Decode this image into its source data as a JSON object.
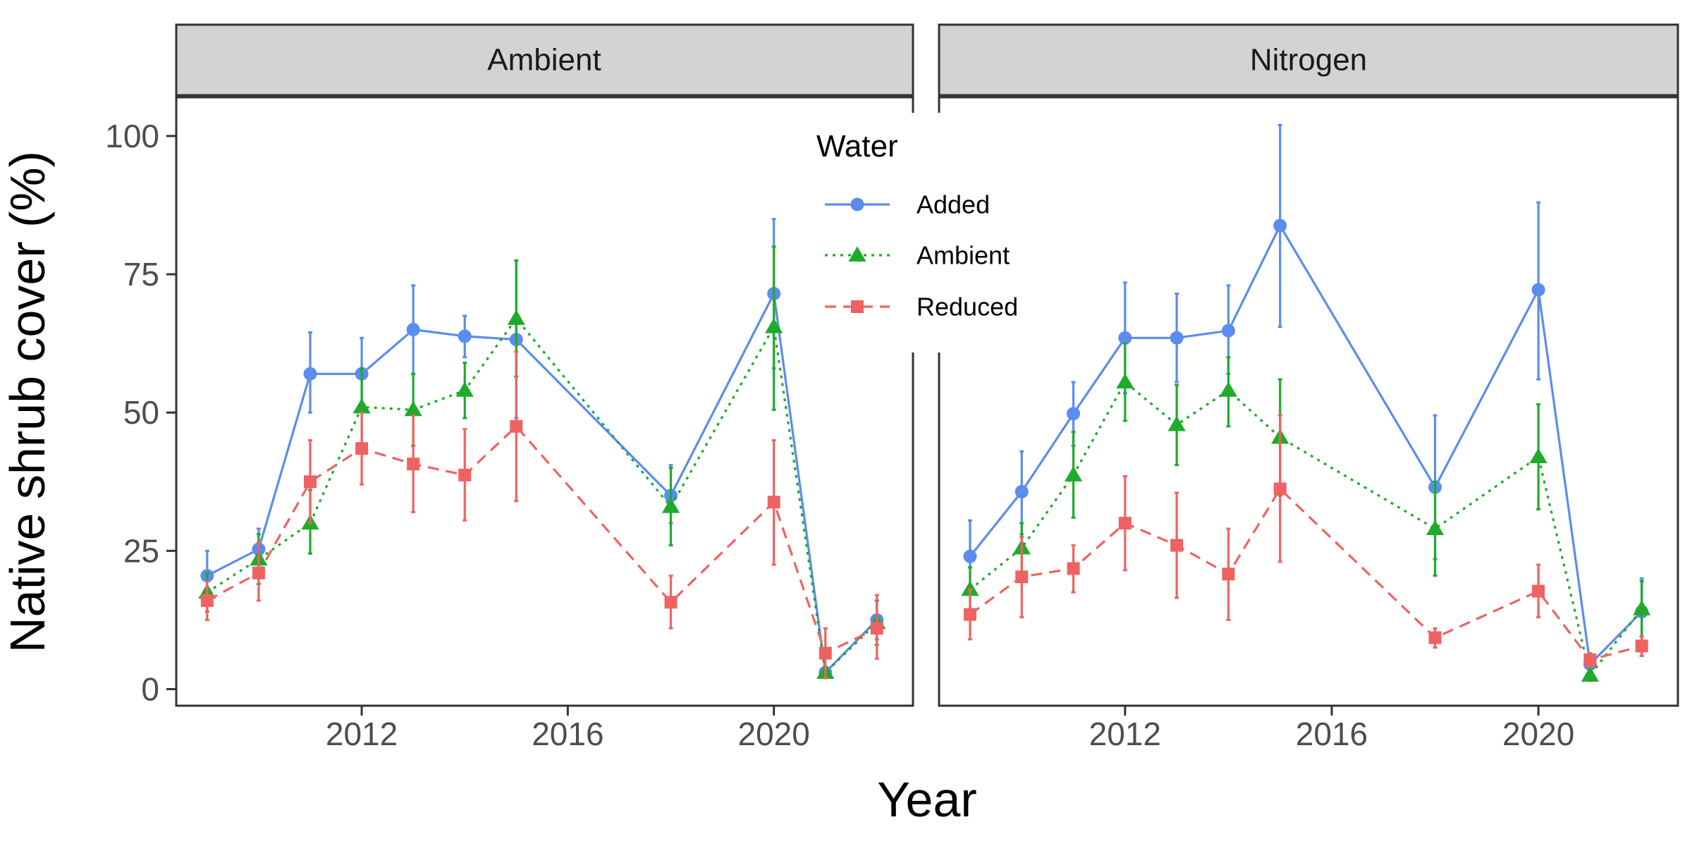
{
  "chart_data": {
    "type": "line",
    "facet_labels": [
      "Ambient",
      "Nitrogen"
    ],
    "xlabel": "Year",
    "ylabel": "Native shrub cover (%)",
    "x_ticks": [
      2012,
      2016,
      2020
    ],
    "y_ticks": [
      0,
      25,
      50,
      75,
      100
    ],
    "xlim": [
      2008.4,
      2022.7
    ],
    "ylim": [
      -3,
      107
    ],
    "legend": {
      "title": "Water",
      "position": "top-center",
      "entries": [
        "Added",
        "Ambient",
        "Reduced"
      ]
    },
    "colors": {
      "Added": "#5b8cf0",
      "Ambient": "#1fab2a",
      "Reduced": "#ef6262"
    },
    "markers": {
      "Added": "circle",
      "Ambient": "triangle",
      "Reduced": "square"
    },
    "dashes": {
      "Added": "solid",
      "Ambient": "dotted",
      "Reduced": "dashed"
    },
    "grid": false,
    "panels": [
      {
        "label": "Ambient",
        "series": [
          {
            "name": "Added",
            "points": [
              {
                "x": 2009,
                "y": 20.5,
                "lo": 16.5,
                "hi": 25
              },
              {
                "x": 2010,
                "y": 25.3,
                "lo": 21.5,
                "hi": 29
              },
              {
                "x": 2011,
                "y": 57,
                "lo": 50,
                "hi": 64.5
              },
              {
                "x": 2012,
                "y": 57,
                "lo": 51,
                "hi": 63.5
              },
              {
                "x": 2013,
                "y": 65,
                "lo": 57,
                "hi": 73
              },
              {
                "x": 2014,
                "y": 63.8,
                "lo": 60,
                "hi": 67.5
              },
              {
                "x": 2015,
                "y": 63.2,
                "lo": 49,
                "hi": 77.5
              },
              {
                "x": 2018,
                "y": 35,
                "lo": 30,
                "hi": 40.5
              },
              {
                "x": 2020,
                "y": 71.5,
                "lo": 58,
                "hi": 85
              },
              {
                "x": 2021,
                "y": 3,
                "lo": 2,
                "hi": 4
              },
              {
                "x": 2022,
                "y": 12.5,
                "lo": 9,
                "hi": 16
              }
            ]
          },
          {
            "name": "Ambient",
            "points": [
              {
                "x": 2009,
                "y": 17.5,
                "lo": 14,
                "hi": 21
              },
              {
                "x": 2010,
                "y": 23.5,
                "lo": 19,
                "hi": 28
              },
              {
                "x": 2011,
                "y": 30,
                "lo": 24.5,
                "hi": 36
              },
              {
                "x": 2012,
                "y": 51,
                "lo": 44,
                "hi": 58
              },
              {
                "x": 2013,
                "y": 50.5,
                "lo": 44,
                "hi": 57
              },
              {
                "x": 2014,
                "y": 54,
                "lo": 49,
                "hi": 59
              },
              {
                "x": 2015,
                "y": 67,
                "lo": 56.5,
                "hi": 77.5
              },
              {
                "x": 2018,
                "y": 33,
                "lo": 26,
                "hi": 40
              },
              {
                "x": 2020,
                "y": 65.5,
                "lo": 50.5,
                "hi": 80
              },
              {
                "x": 2021,
                "y": 3,
                "lo": 2,
                "hi": 4
              },
              {
                "x": 2022,
                "y": 12,
                "lo": 8,
                "hi": 16
              }
            ]
          },
          {
            "name": "Reduced",
            "points": [
              {
                "x": 2009,
                "y": 16,
                "lo": 12.5,
                "hi": 19.5
              },
              {
                "x": 2010,
                "y": 21,
                "lo": 16,
                "hi": 26.5
              },
              {
                "x": 2011,
                "y": 37.5,
                "lo": 30,
                "hi": 45
              },
              {
                "x": 2012,
                "y": 43.5,
                "lo": 37,
                "hi": 50
              },
              {
                "x": 2013,
                "y": 40.7,
                "lo": 32,
                "hi": 49.5
              },
              {
                "x": 2014,
                "y": 38.7,
                "lo": 30.5,
                "hi": 47
              },
              {
                "x": 2015,
                "y": 47.5,
                "lo": 34,
                "hi": 61
              },
              {
                "x": 2018,
                "y": 15.7,
                "lo": 11,
                "hi": 20.5
              },
              {
                "x": 2020,
                "y": 33.8,
                "lo": 22.5,
                "hi": 45
              },
              {
                "x": 2021,
                "y": 6.5,
                "lo": 2,
                "hi": 11
              },
              {
                "x": 2022,
                "y": 11,
                "lo": 5.5,
                "hi": 17
              }
            ]
          }
        ]
      },
      {
        "label": "Nitrogen",
        "series": [
          {
            "name": "Added",
            "points": [
              {
                "x": 2009,
                "y": 24,
                "lo": 17.5,
                "hi": 30.5
              },
              {
                "x": 2010,
                "y": 35.7,
                "lo": 28,
                "hi": 43
              },
              {
                "x": 2011,
                "y": 49.8,
                "lo": 44,
                "hi": 55.5
              },
              {
                "x": 2012,
                "y": 63.5,
                "lo": 53.5,
                "hi": 73.5
              },
              {
                "x": 2013,
                "y": 63.5,
                "lo": 55.5,
                "hi": 71.5
              },
              {
                "x": 2014,
                "y": 64.8,
                "lo": 57,
                "hi": 73
              },
              {
                "x": 2015,
                "y": 83.8,
                "lo": 65.5,
                "hi": 102
              },
              {
                "x": 2018,
                "y": 36.5,
                "lo": 23.5,
                "hi": 49.5
              },
              {
                "x": 2020,
                "y": 72.2,
                "lo": 56,
                "hi": 88
              },
              {
                "x": 2021,
                "y": 4.5,
                "lo": 3,
                "hi": 6
              },
              {
                "x": 2022,
                "y": 14,
                "lo": 8,
                "hi": 20
              }
            ]
          },
          {
            "name": "Ambient",
            "points": [
              {
                "x": 2009,
                "y": 18,
                "lo": 14,
                "hi": 22
              },
              {
                "x": 2010,
                "y": 25.5,
                "lo": 21,
                "hi": 30
              },
              {
                "x": 2011,
                "y": 38.7,
                "lo": 31,
                "hi": 46.5
              },
              {
                "x": 2012,
                "y": 55.5,
                "lo": 48.5,
                "hi": 62.5
              },
              {
                "x": 2013,
                "y": 47.8,
                "lo": 40.5,
                "hi": 55
              },
              {
                "x": 2014,
                "y": 54,
                "lo": 47.5,
                "hi": 60
              },
              {
                "x": 2015,
                "y": 45.5,
                "lo": 35,
                "hi": 56
              },
              {
                "x": 2018,
                "y": 29,
                "lo": 20.5,
                "hi": 37.5
              },
              {
                "x": 2020,
                "y": 42,
                "lo": 32.5,
                "hi": 51.5
              },
              {
                "x": 2021,
                "y": 2.5,
                "lo": 1.5,
                "hi": 3.5
              },
              {
                "x": 2022,
                "y": 14.5,
                "lo": 9.5,
                "hi": 19.5
              }
            ]
          },
          {
            "name": "Reduced",
            "points": [
              {
                "x": 2009,
                "y": 13.5,
                "lo": 9,
                "hi": 18
              },
              {
                "x": 2010,
                "y": 20.3,
                "lo": 13,
                "hi": 27.5
              },
              {
                "x": 2011,
                "y": 21.8,
                "lo": 17.5,
                "hi": 26
              },
              {
                "x": 2012,
                "y": 30,
                "lo": 21.5,
                "hi": 38.5
              },
              {
                "x": 2013,
                "y": 26,
                "lo": 16.5,
                "hi": 35.5
              },
              {
                "x": 2014,
                "y": 20.8,
                "lo": 12.5,
                "hi": 29
              },
              {
                "x": 2015,
                "y": 36.2,
                "lo": 23,
                "hi": 49.5
              },
              {
                "x": 2018,
                "y": 9.3,
                "lo": 7.5,
                "hi": 11
              },
              {
                "x": 2020,
                "y": 17.7,
                "lo": 13,
                "hi": 22.5
              },
              {
                "x": 2021,
                "y": 5.3,
                "lo": 4,
                "hi": 6.5
              },
              {
                "x": 2022,
                "y": 7.8,
                "lo": 6,
                "hi": 9.5
              }
            ]
          }
        ]
      }
    ]
  }
}
